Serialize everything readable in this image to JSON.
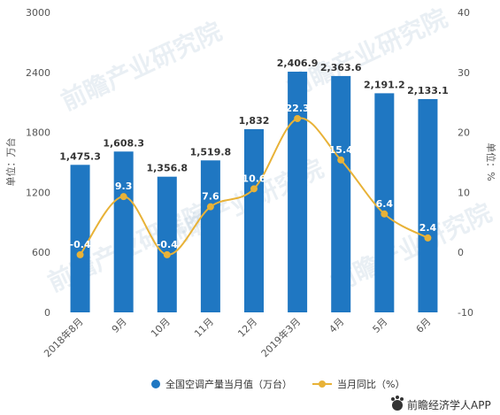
{
  "chart_data": {
    "type": "bar+line",
    "categories": [
      "2018年8月",
      "9月",
      "10月",
      "11月",
      "12月",
      "2019年3月",
      "4月",
      "5月",
      "6月"
    ],
    "series": [
      {
        "name": "全国空调产量当月值（万台）",
        "type": "bar",
        "axis": "left",
        "color": "#1f77c2",
        "values": [
          1475.3,
          1608.3,
          1356.8,
          1519.8,
          1832,
          2406.9,
          2363.6,
          2191.2,
          2133.1
        ],
        "labels": [
          "1,475.3",
          "1,608.3",
          "1,356.8",
          "1,519.8",
          "1,832",
          "2,406.9",
          "2,363.6",
          "2,191.2",
          "2,133.1"
        ]
      },
      {
        "name": "当月同比（%）",
        "type": "line",
        "axis": "right",
        "color": "#e8b237",
        "values": [
          -0.4,
          9.3,
          -0.4,
          7.6,
          10.6,
          22.3,
          15.4,
          6.4,
          2.4
        ],
        "labels": [
          "-0.4",
          "9.3",
          "-0.4",
          "7.6",
          "10.6",
          "22.3",
          "15.4",
          "6.4",
          "2.4"
        ]
      }
    ],
    "left_axis": {
      "label": "单位：万台",
      "range": [
        0,
        3000
      ],
      "ticks": [
        "0",
        "600",
        "1200",
        "1800",
        "2400",
        "3000"
      ]
    },
    "right_axis": {
      "label": "单位：%",
      "range": [
        -10,
        40
      ],
      "ticks": [
        "-10",
        "0",
        "10",
        "20",
        "30",
        "40"
      ]
    },
    "grid": false,
    "legend_position": "bottom"
  },
  "watermark": "前瞻产业研究院",
  "brand": {
    "text": "前瞻经济学人APP",
    "icon": "bear-paw-icon"
  }
}
